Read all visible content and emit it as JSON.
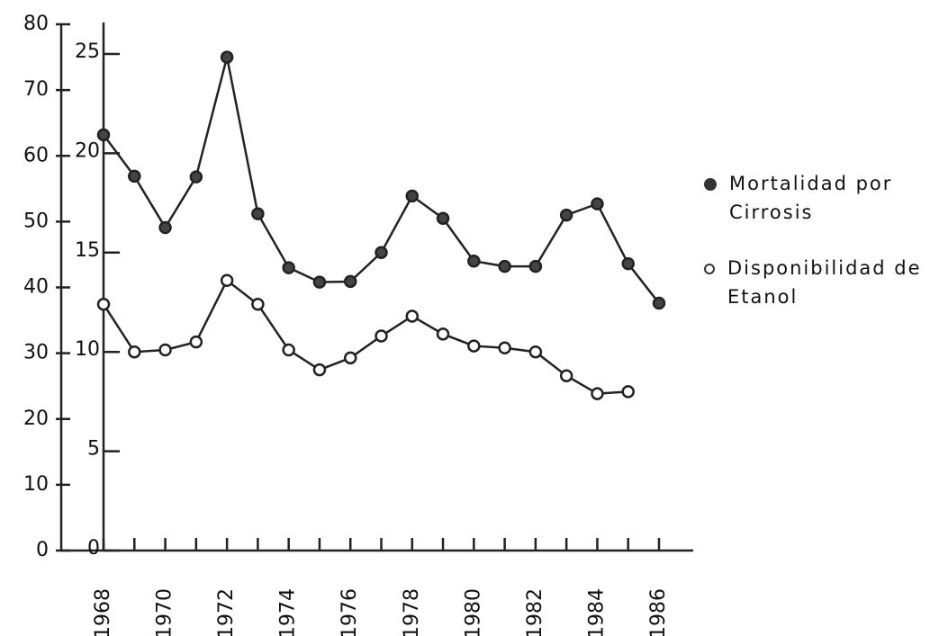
{
  "chart_data": {
    "type": "line",
    "categories": [
      "1968",
      null,
      "1970",
      null,
      "1972",
      null,
      "1974",
      null,
      "1976",
      null,
      "1978",
      null,
      "1980",
      null,
      "1982",
      null,
      "1984",
      null,
      "1986"
    ],
    "series": [
      {
        "name": "Mortalidad por Cirrosis",
        "color": "#222",
        "marker": "filled",
        "values": [
          63.2,
          56.9,
          49.1,
          56.8,
          75.0,
          51.2,
          43.0,
          40.8,
          40.9,
          45.3,
          53.9,
          50.5,
          44.0,
          43.2,
          43.2,
          51.0,
          52.7,
          43.6,
          37.6
        ]
      },
      {
        "name": "Disponibilidad de Etanol",
        "color": "#222",
        "marker": "open",
        "axis": "y2",
        "values": [
          12.4,
          10.0,
          10.1,
          10.5,
          13.6,
          12.4,
          10.1,
          9.1,
          9.7,
          10.8,
          11.8,
          10.9,
          10.3,
          10.2,
          10.0,
          8.8,
          7.9,
          8.0,
          null
        ]
      }
    ],
    "ylim": [
      0,
      80
    ],
    "yticks": [
      0,
      10,
      20,
      30,
      40,
      50,
      60,
      70,
      80
    ],
    "y2lim": [
      0,
      25
    ],
    "y2ticks": [
      0,
      5,
      10,
      15,
      20,
      25
    ],
    "legend": "right"
  }
}
